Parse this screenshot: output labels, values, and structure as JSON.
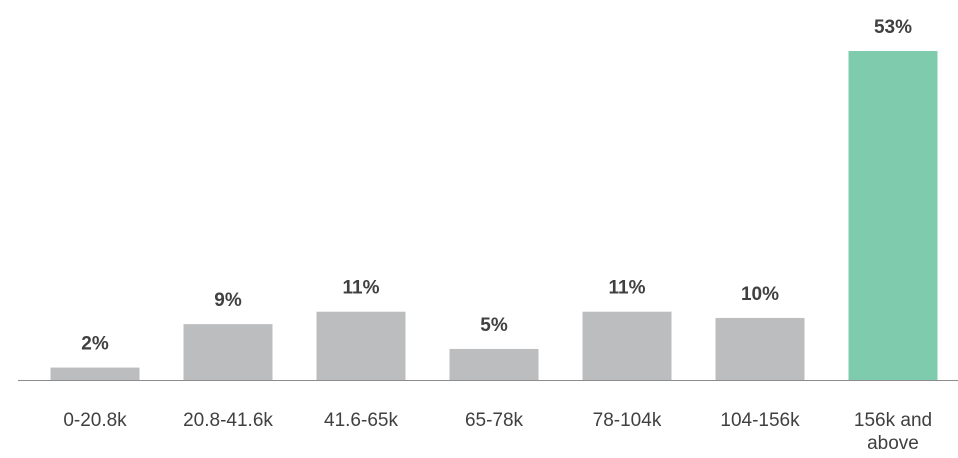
{
  "chart_data": {
    "type": "bar",
    "title": "",
    "xlabel": "",
    "ylabel": "",
    "categories": [
      "0-20.8k",
      "20.8-41.6k",
      "41.6-65k",
      "65-78k",
      "78-104k",
      "104-156k",
      "156k and above"
    ],
    "values": [
      2,
      9,
      11,
      5,
      11,
      10,
      53
    ],
    "value_labels": [
      "2%",
      "9%",
      "11%",
      "5%",
      "11%",
      "10%",
      "53%"
    ],
    "ylim": [
      0,
      53
    ],
    "grid": false,
    "highlight_index": 6,
    "colors": {
      "default_bar": "#bcbdbf",
      "highlight_bar": "#7ecbad",
      "axis": "#8c8c8c",
      "text": "#404040"
    }
  }
}
